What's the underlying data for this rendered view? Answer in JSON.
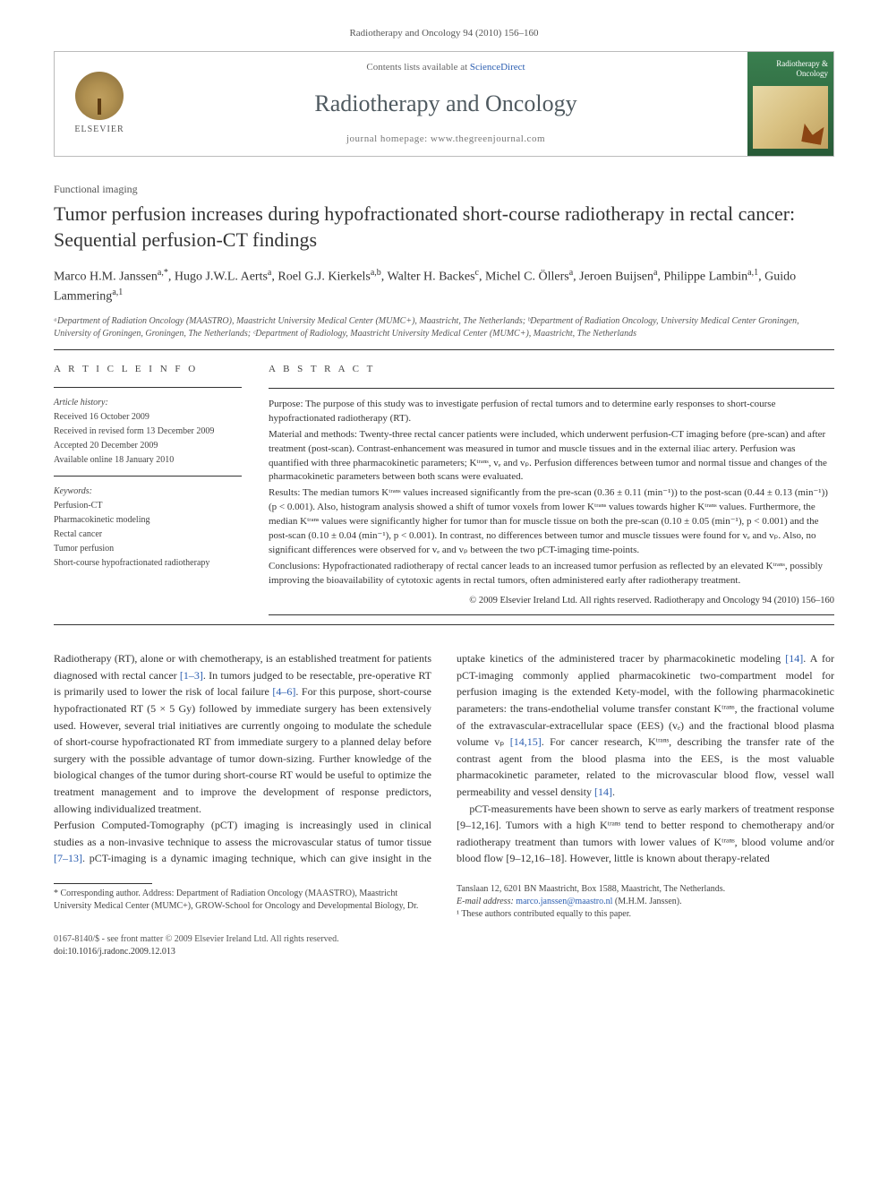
{
  "journal_ref": "Radiotherapy and Oncology 94 (2010) 156–160",
  "header": {
    "contents_prefix": "Contents lists available at ",
    "contents_link": "ScienceDirect",
    "journal_title": "Radiotherapy and Oncology",
    "homepage": "journal homepage: www.thegreenjournal.com",
    "elsevier": "ELSEVIER",
    "cover_title": "Radiotherapy & Oncology"
  },
  "section_label": "Functional imaging",
  "title": "Tumor perfusion increases during hypofractionated short-course radiotherapy in rectal cancer: Sequential perfusion-CT findings",
  "authors_html": "Marco H.M. Janssen<span class='aff'>a,*</span>, Hugo J.W.L. Aerts<span class='aff'>a</span>, Roel G.J. Kierkels<span class='aff'>a,b</span>, Walter H. Backes<span class='aff'>c</span>, Michel C. Öllers<span class='aff'>a</span>, Jeroen Buijsen<span class='aff'>a</span>, Philippe Lambin<span class='aff'>a,1</span>, Guido Lammering<span class='aff'>a,1</span>",
  "affiliations": "ᵃDepartment of Radiation Oncology (MAASTRO), Maastricht University Medical Center (MUMC+), Maastricht, The Netherlands; ᵇDepartment of Radiation Oncology, University Medical Center Groningen, University of Groningen, Groningen, The Netherlands; ᶜDepartment of Radiology, Maastricht University Medical Center (MUMC+), Maastricht, The Netherlands",
  "info": {
    "heading": "A R T I C L E   I N F O",
    "history_heading": "Article history:",
    "received": "Received 16 October 2009",
    "revised": "Received in revised form 13 December 2009",
    "accepted": "Accepted 20 December 2009",
    "online": "Available online 18 January 2010",
    "keywords_heading": "Keywords:",
    "keywords": [
      "Perfusion-CT",
      "Pharmacokinetic modeling",
      "Rectal cancer",
      "Tumor perfusion",
      "Short-course hypofractionated radiotherapy"
    ]
  },
  "abstract": {
    "heading": "A B S T R A C T",
    "purpose": "Purpose: The purpose of this study was to investigate perfusion of rectal tumors and to determine early responses to short-course hypofractionated radiotherapy (RT).",
    "methods": "Material and methods: Twenty-three rectal cancer patients were included, which underwent perfusion-CT imaging before (pre-scan) and after treatment (post-scan). Contrast-enhancement was measured in tumor and muscle tissues and in the external iliac artery. Perfusion was quantified with three pharmacokinetic parameters; Kᵗʳᵃⁿˢ, vₑ and vₚ. Perfusion differences between tumor and normal tissue and changes of the pharmacokinetic parameters between both scans were evaluated.",
    "results": "Results: The median tumors Kᵗʳᵃⁿˢ values increased significantly from the pre-scan (0.36 ± 0.11 (min⁻¹)) to the post-scan (0.44 ± 0.13 (min⁻¹)) (p < 0.001). Also, histogram analysis showed a shift of tumor voxels from lower Kᵗʳᵃⁿˢ values towards higher Kᵗʳᵃⁿˢ values. Furthermore, the median Kᵗʳᵃⁿˢ values were significantly higher for tumor than for muscle tissue on both the pre-scan (0.10 ± 0.05 (min⁻¹), p < 0.001) and the post-scan (0.10 ± 0.04 (min⁻¹), p < 0.001). In contrast, no differences between tumor and muscle tissues were found for vₑ and vₚ. Also, no significant differences were observed for vₑ and vₚ between the two pCT-imaging time-points.",
    "conclusions": "Conclusions: Hypofractionated radiotherapy of rectal cancer leads to an increased tumor perfusion as reflected by an elevated Kᵗʳᵃⁿˢ, possibly improving the bioavailability of cytotoxic agents in rectal tumors, often administered early after radiotherapy treatment.",
    "copyright": "© 2009 Elsevier Ireland Ltd. All rights reserved. Radiotherapy and Oncology 94 (2010) 156–160"
  },
  "body": {
    "col1_p1": "Radiotherapy (RT), alone or with chemotherapy, is an established treatment for patients diagnosed with rectal cancer [1–3]. In tumors judged to be resectable, pre-operative RT is primarily used to lower the risk of local failure [4–6]. For this purpose, short-course hypofractionated RT (5 × 5 Gy) followed by immediate surgery has been extensively used. However, several trial initiatives are currently ongoing to modulate the schedule of short-course hypofractionated RT from immediate surgery to a planned delay before surgery with the possible advantage of tumor down-sizing. Further knowledge of the biological changes of the tumor during short-course RT would be useful to optimize the treatment management and to improve the development of response predictors, allowing individualized treatment.",
    "col2_p1": "Perfusion Computed-Tomography (pCT) imaging is increasingly used in clinical studies as a non-invasive technique to assess the microvascular status of tumor tissue [7–13]. pCT-imaging is a dynamic imaging technique, which can give insight in the uptake kinetics of the administered tracer by pharmacokinetic modeling [14]. A for pCT-imaging commonly applied pharmacokinetic two-compartment model for perfusion imaging is the extended Kety-model, with the following pharmacokinetic parameters: the trans-endothelial volume transfer constant Kᵗʳᵃⁿˢ, the fractional volume of the extravascular-extracellular space (EES) (vₑ) and the fractional blood plasma volume vₚ [14,15]. For cancer research, Kᵗʳᵃⁿˢ, describing the transfer rate of the contrast agent from the blood plasma into the EES, is the most valuable pharmacokinetic parameter, related to the microvascular blood flow, vessel wall permeability and vessel density [14].",
    "col2_p2": "pCT-measurements have been shown to serve as early markers of treatment response [9–12,16]. Tumors with a high Kᵗʳᵃⁿˢ tend to better respond to chemotherapy and/or radiotherapy treatment than tumors with lower values of Kᵗʳᵃⁿˢ, blood volume and/or blood flow [9–12,16–18]. However, little is known about therapy-related"
  },
  "footnotes": {
    "corr": "* Corresponding author. Address: Department of Radiation Oncology (MAASTRO), Maastricht University Medical Center (MUMC+), GROW-School for Oncology and Developmental Biology, Dr. Tanslaan 12, 6201 BN Maastricht, Box 1588, Maastricht, The Netherlands.",
    "email_label": "E-mail address: ",
    "email": "marco.janssen@maastro.nl",
    "email_suffix": " (M.H.M. Janssen).",
    "equal": "¹ These authors contributed equally to this paper."
  },
  "footer": {
    "left1": "0167-8140/$ - see front matter © 2009 Elsevier Ireland Ltd. All rights reserved.",
    "left2": "doi:10.1016/j.radonc.2009.12.013"
  },
  "colors": {
    "link": "#2a5db0",
    "text": "#333333",
    "muted": "#555555",
    "rule": "#333333",
    "cover_bg": "#2f6a41"
  }
}
